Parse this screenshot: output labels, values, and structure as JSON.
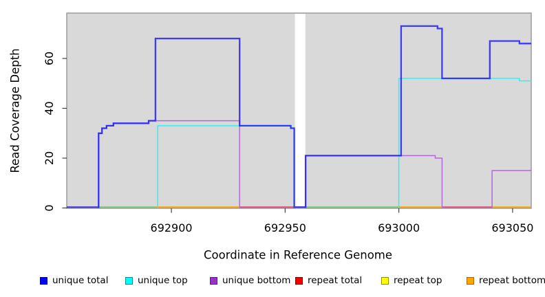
{
  "chart_data": {
    "type": "line",
    "subtype": "step-coverage-plot",
    "title": "",
    "xlabel": "Coordinate in Reference Genome",
    "ylabel": "Read Coverage Depth",
    "x_ticks": [
      692900,
      692950,
      693000,
      693050
    ],
    "y_ticks": [
      0,
      20,
      40,
      60
    ],
    "xlim": [
      692854,
      693058.2
    ],
    "ylim": [
      0,
      78.5
    ],
    "grid": false,
    "panel_background": "#d9d9d9",
    "panel_border": "#8f8f8f",
    "gap": {
      "from": 692954.3,
      "to": 692958.9
    },
    "series": [
      {
        "name": "unique top",
        "color": "#2ef2f2",
        "width": 1.5,
        "opacity": 1,
        "parts": [
          [
            [
              692894,
              0
            ],
            [
              692894,
              33
            ],
            [
              692952.5,
              33
            ],
            [
              692952.5,
              32
            ],
            [
              692954,
              32
            ],
            [
              692954,
              0
            ]
          ],
          [
            [
              693000,
              0
            ],
            [
              693000,
              52
            ],
            [
              693053,
              52
            ],
            [
              693053,
              51
            ],
            [
              693058.2,
              51
            ]
          ]
        ]
      },
      {
        "name": "unique bottom",
        "color": "#b06adf",
        "width": 1.5,
        "opacity": 1,
        "parts": [
          [
            [
              692868,
              0
            ],
            [
              692868,
              30
            ],
            [
              692869.5,
              30
            ],
            [
              692869.5,
              32
            ],
            [
              692871.5,
              32
            ],
            [
              692871.5,
              33
            ],
            [
              692874.5,
              33
            ],
            [
              692874.5,
              34
            ],
            [
              692890,
              34
            ],
            [
              692890,
              35
            ],
            [
              692930,
              35
            ],
            [
              692930,
              0
            ]
          ],
          [
            [
              692959,
              0
            ],
            [
              692959,
              21
            ],
            [
              693016,
              21
            ],
            [
              693016,
              20
            ],
            [
              693019,
              20
            ],
            [
              693019,
              0
            ]
          ],
          [
            [
              693041,
              0
            ],
            [
              693041,
              15
            ],
            [
              693058.2,
              15
            ]
          ]
        ]
      },
      {
        "name": "unique total",
        "color": "#1f1fff",
        "width": 2.3,
        "opacity": 0.85,
        "parts": [
          [
            [
              692868,
              0
            ],
            [
              692868,
              30
            ],
            [
              692869.5,
              30
            ],
            [
              692869.5,
              32
            ],
            [
              692871.5,
              32
            ],
            [
              692871.5,
              33
            ],
            [
              692874.5,
              33
            ],
            [
              692874.5,
              34
            ],
            [
              692890,
              34
            ],
            [
              692890,
              35
            ],
            [
              692893,
              35
            ],
            [
              692893,
              68
            ],
            [
              692930,
              68
            ],
            [
              692930,
              33
            ],
            [
              692952.5,
              33
            ],
            [
              692952.5,
              32
            ],
            [
              692954,
              32
            ],
            [
              692954,
              0
            ]
          ],
          [
            [
              692959,
              0
            ],
            [
              692959,
              21
            ],
            [
              693001,
              21
            ],
            [
              693001,
              73
            ],
            [
              693017,
              73
            ],
            [
              693017,
              72
            ],
            [
              693019,
              72
            ],
            [
              693019,
              52
            ],
            [
              693040,
              52
            ],
            [
              693040,
              67
            ],
            [
              693053,
              67
            ],
            [
              693053,
              66
            ],
            [
              693058.2,
              66
            ]
          ]
        ]
      }
    ],
    "baseline_segments": [
      {
        "from": 692854,
        "to": 692868,
        "color": "#4236d8"
      },
      {
        "from": 692868,
        "to": 692893,
        "color": "#7cc87c"
      },
      {
        "from": 692893,
        "to": 692930,
        "color": "#ffa500"
      },
      {
        "from": 692930,
        "to": 692954.3,
        "color": "#e0507c"
      },
      {
        "from": 692954.3,
        "to": 692958.9,
        "color": "#2a2af0"
      },
      {
        "from": 692958.9,
        "to": 693000,
        "color": "#7cc87c"
      },
      {
        "from": 693000,
        "to": 693019,
        "color": "#ffa500"
      },
      {
        "from": 693019,
        "to": 693041,
        "color": "#e0507c"
      },
      {
        "from": 693041,
        "to": 693058.2,
        "color": "#ffa500"
      }
    ],
    "legend": [
      {
        "label": "unique total",
        "fill": "#0000fd",
        "border": "#0008a8"
      },
      {
        "label": "unique top",
        "fill": "#00fefe",
        "border": "#0a8f8f"
      },
      {
        "label": "unique bottom",
        "fill": "#9932cc",
        "border": "#5e1d86"
      },
      {
        "label": "repeat total",
        "fill": "#f40000",
        "border": "#8e0000"
      },
      {
        "label": "repeat top",
        "fill": "#ffff00",
        "border": "#8f8f00"
      },
      {
        "label": "repeat bottom",
        "fill": "#ffa500",
        "border": "#a86a00"
      }
    ],
    "legend_position": "bottom"
  }
}
